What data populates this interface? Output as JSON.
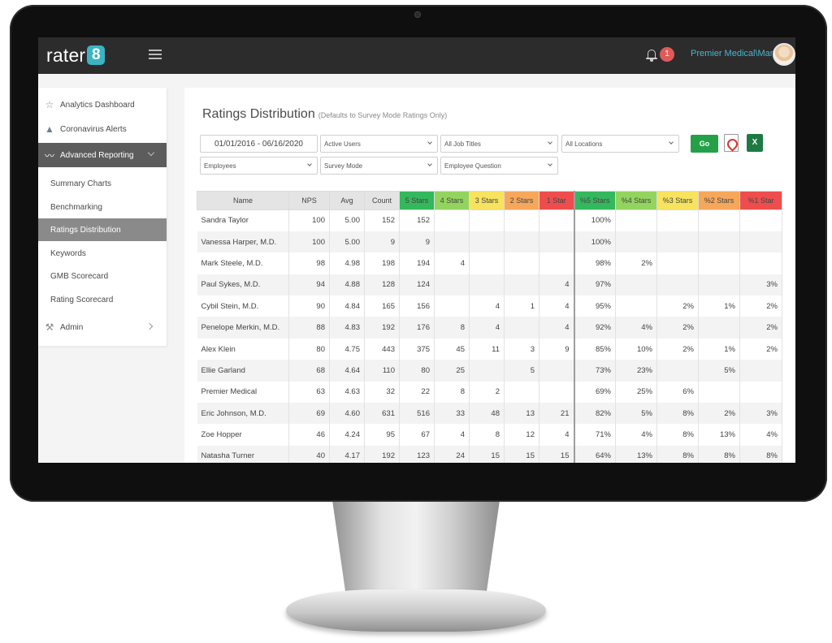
{
  "topbar": {
    "logo_text": "rater",
    "logo_badge": "8",
    "notification_count": "1",
    "user_name": "Premier Medical\\Mark"
  },
  "sidebar": {
    "items": [
      {
        "label": "Analytics Dashboard",
        "icon": "star-outline-icon"
      },
      {
        "label": "Coronavirus Alerts",
        "icon": "warning-triangle-icon"
      },
      {
        "label": "Advanced Reporting",
        "icon": "trend-line-icon"
      },
      {
        "label": "Summary Charts"
      },
      {
        "label": "Benchmarking"
      },
      {
        "label": "Ratings Distribution"
      },
      {
        "label": "Keywords"
      },
      {
        "label": "GMB Scorecard"
      },
      {
        "label": "Rating Scorecard"
      },
      {
        "label": "Admin",
        "icon": "wrench-icon"
      }
    ]
  },
  "page": {
    "title": "Ratings Distribution",
    "note": "(Defaults to Survey Mode Ratings Only)"
  },
  "filters": {
    "date_range": "01/01/2016 - 06/16/2020",
    "users": "Active Users",
    "job_titles": "All Job Titles",
    "locations": "All Locations",
    "employees": "Employees",
    "survey_mode": "Survey Mode",
    "question": "Employee Question",
    "go_label": "Go",
    "excel_label": "X"
  },
  "colors": {
    "stars5": "#34b85d",
    "stars4": "#93d45e",
    "stars3": "#f7e35d",
    "stars2": "#f6a75a",
    "stars1": "#ef4d4d",
    "accent": "#49b7d0"
  },
  "table": {
    "headers": [
      "Name",
      "NPS",
      "Avg",
      "Count",
      "5 Stars",
      "4 Stars",
      "3 Stars",
      "2 Stars",
      "1 Star",
      "%5 Stars",
      "%4 Stars",
      "%3 Stars",
      "%2 Stars",
      "%1 Star"
    ],
    "rows": [
      [
        "Sandra Taylor",
        "100",
        "5.00",
        "152",
        "152",
        "",
        "",
        "",
        "",
        "100%",
        "",
        "",
        "",
        ""
      ],
      [
        "Vanessa Harper, M.D.",
        "100",
        "5.00",
        "9",
        "9",
        "",
        "",
        "",
        "",
        "100%",
        "",
        "",
        "",
        ""
      ],
      [
        "Mark Steele, M.D.",
        "98",
        "4.98",
        "198",
        "194",
        "4",
        "",
        "",
        "",
        "98%",
        "2%",
        "",
        "",
        ""
      ],
      [
        "Paul Sykes, M.D.",
        "94",
        "4.88",
        "128",
        "124",
        "",
        "",
        "",
        "4",
        "97%",
        "",
        "",
        "",
        "3%"
      ],
      [
        "Cybil Stein, M.D.",
        "90",
        "4.84",
        "165",
        "156",
        "",
        "4",
        "1",
        "4",
        "95%",
        "",
        "2%",
        "1%",
        "2%"
      ],
      [
        "Penelope Merkin, M.D.",
        "88",
        "4.83",
        "192",
        "176",
        "8",
        "4",
        "",
        "4",
        "92%",
        "4%",
        "2%",
        "",
        "2%"
      ],
      [
        "Alex Klein",
        "80",
        "4.75",
        "443",
        "375",
        "45",
        "11",
        "3",
        "9",
        "85%",
        "10%",
        "2%",
        "1%",
        "2%"
      ],
      [
        "Ellie Garland",
        "68",
        "4.64",
        "110",
        "80",
        "25",
        "",
        "5",
        "",
        "73%",
        "23%",
        "",
        "5%",
        ""
      ],
      [
        "Premier Medical",
        "63",
        "4.63",
        "32",
        "22",
        "8",
        "2",
        "",
        "",
        "69%",
        "25%",
        "6%",
        "",
        ""
      ],
      [
        "Eric Johnson, M.D.",
        "69",
        "4.60",
        "631",
        "516",
        "33",
        "48",
        "13",
        "21",
        "82%",
        "5%",
        "8%",
        "2%",
        "3%"
      ],
      [
        "Zoe Hopper",
        "46",
        "4.24",
        "95",
        "67",
        "4",
        "8",
        "12",
        "4",
        "71%",
        "4%",
        "8%",
        "13%",
        "4%"
      ],
      [
        "Natasha Turner",
        "40",
        "4.17",
        "192",
        "123",
        "24",
        "15",
        "15",
        "15",
        "64%",
        "13%",
        "8%",
        "8%",
        "8%"
      ]
    ]
  }
}
